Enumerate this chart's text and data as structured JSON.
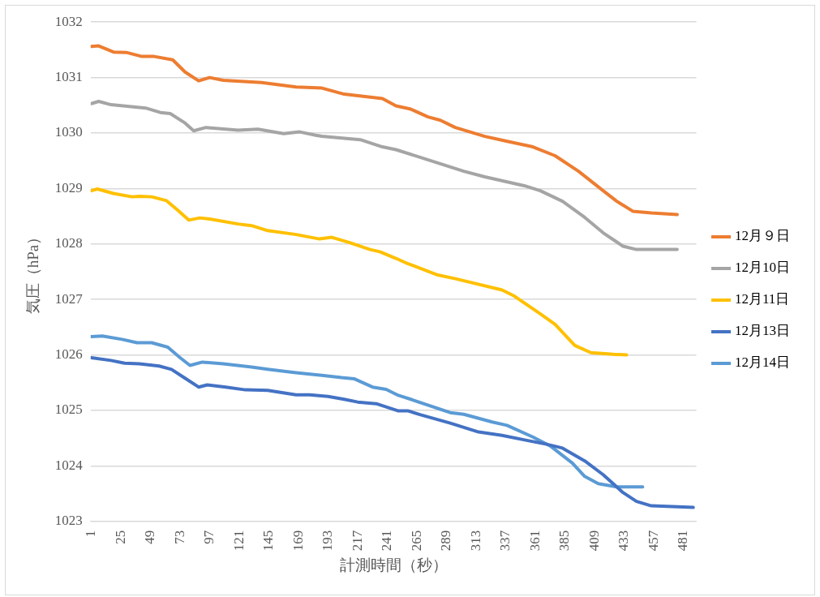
{
  "chart_data": {
    "type": "line",
    "xlabel": "計測時間（秒）",
    "ylabel": "気圧（hPa）",
    "xlim": [
      0.5,
      491.5
    ],
    "xticks": [
      1,
      25,
      49,
      73,
      97,
      121,
      145,
      169,
      193,
      217,
      241,
      265,
      289,
      313,
      337,
      361,
      385,
      409,
      433,
      457,
      481
    ],
    "ylim": [
      1023,
      1032
    ],
    "yticks": [
      1023,
      1024,
      1025,
      1026,
      1027,
      1028,
      1029,
      1030,
      1031,
      1032
    ],
    "grid": "y",
    "legend": "right",
    "marker": "none",
    "line_style": "solid",
    "series": [
      {
        "name": "12月９日",
        "color": "#ed7d31",
        "x": [
          1,
          7,
          19,
          30,
          42,
          52,
          67,
          77,
          88,
          97,
          108,
          139,
          167,
          188,
          206,
          237,
          248,
          260,
          274,
          284,
          296,
          320,
          336,
          359,
          377,
          396,
          416,
          427,
          440,
          455,
          476
        ],
        "values": [
          1031.56,
          1031.57,
          1031.46,
          1031.45,
          1031.38,
          1031.38,
          1031.32,
          1031.1,
          1030.94,
          1031.0,
          1030.95,
          1030.91,
          1030.83,
          1030.81,
          1030.7,
          1030.62,
          1030.49,
          1030.43,
          1030.29,
          1030.23,
          1030.1,
          1029.94,
          1029.86,
          1029.75,
          1029.59,
          1029.31,
          1028.96,
          1028.77,
          1028.59,
          1028.56,
          1028.53
        ]
      },
      {
        "name": "12月10日",
        "color": "#a5a5a5",
        "x": [
          1,
          7,
          17,
          45,
          57,
          65,
          77,
          84,
          94,
          120,
          136,
          157,
          170,
          183,
          188,
          219,
          237,
          248,
          268,
          303,
          320,
          352,
          365,
          383,
          401,
          416,
          432,
          443,
          461,
          476
        ],
        "values": [
          1030.53,
          1030.57,
          1030.51,
          1030.45,
          1030.37,
          1030.35,
          1030.18,
          1030.04,
          1030.1,
          1030.05,
          1030.07,
          1029.99,
          1030.02,
          1029.96,
          1029.94,
          1029.88,
          1029.75,
          1029.7,
          1029.56,
          1029.31,
          1029.21,
          1029.05,
          1028.96,
          1028.77,
          1028.48,
          1028.2,
          1027.96,
          1027.9,
          1027.9,
          1027.9
        ]
      },
      {
        "name": "12月11日",
        "color": "#ffc000",
        "x": [
          1,
          6,
          19,
          34,
          40,
          50,
          62,
          71,
          80,
          89,
          97,
          120,
          131,
          144,
          167,
          186,
          196,
          211,
          227,
          235,
          248,
          256,
          282,
          297,
          334,
          344,
          365,
          377,
          393,
          406,
          424,
          435
        ],
        "values": [
          1028.96,
          1028.99,
          1028.91,
          1028.85,
          1028.86,
          1028.85,
          1028.78,
          1028.61,
          1028.43,
          1028.47,
          1028.45,
          1028.36,
          1028.33,
          1028.24,
          1028.17,
          1028.09,
          1028.12,
          1028.02,
          1027.9,
          1027.86,
          1027.74,
          1027.66,
          1027.44,
          1027.37,
          1027.17,
          1027.06,
          1026.74,
          1026.55,
          1026.17,
          1026.04,
          1026.01,
          1026.0
        ]
      },
      {
        "name": "12月13日",
        "color": "#4472c4",
        "x": [
          1,
          17,
          28,
          40,
          56,
          66,
          77,
          88,
          95,
          110,
          126,
          144,
          167,
          178,
          193,
          206,
          217,
          232,
          250,
          258,
          268,
          292,
          315,
          334,
          354,
          370,
          383,
          401,
          416,
          432,
          443,
          455,
          489
        ],
        "values": [
          1025.95,
          1025.9,
          1025.85,
          1025.84,
          1025.8,
          1025.74,
          1025.58,
          1025.42,
          1025.46,
          1025.42,
          1025.37,
          1025.36,
          1025.28,
          1025.28,
          1025.25,
          1025.2,
          1025.15,
          1025.12,
          1024.99,
          1024.99,
          1024.92,
          1024.77,
          1024.61,
          1024.55,
          1024.46,
          1024.39,
          1024.32,
          1024.09,
          1023.84,
          1023.52,
          1023.36,
          1023.28,
          1023.25
        ]
      },
      {
        "name": "12月14日",
        "color": "#5b9bd5",
        "x": [
          1,
          10,
          26,
          38,
          50,
          63,
          73,
          81,
          91,
          108,
          131,
          144,
          167,
          188,
          204,
          214,
          229,
          240,
          250,
          260,
          292,
          303,
          326,
          338,
          359,
          373,
          391,
          401,
          412,
          427,
          448
        ],
        "values": [
          1026.33,
          1026.34,
          1026.28,
          1026.22,
          1026.22,
          1026.14,
          1025.95,
          1025.81,
          1025.87,
          1025.84,
          1025.78,
          1025.74,
          1025.68,
          1025.63,
          1025.59,
          1025.57,
          1025.42,
          1025.38,
          1025.27,
          1025.2,
          1024.96,
          1024.93,
          1024.79,
          1024.73,
          1024.52,
          1024.36,
          1024.05,
          1023.81,
          1023.68,
          1023.62,
          1023.62
        ]
      }
    ]
  }
}
